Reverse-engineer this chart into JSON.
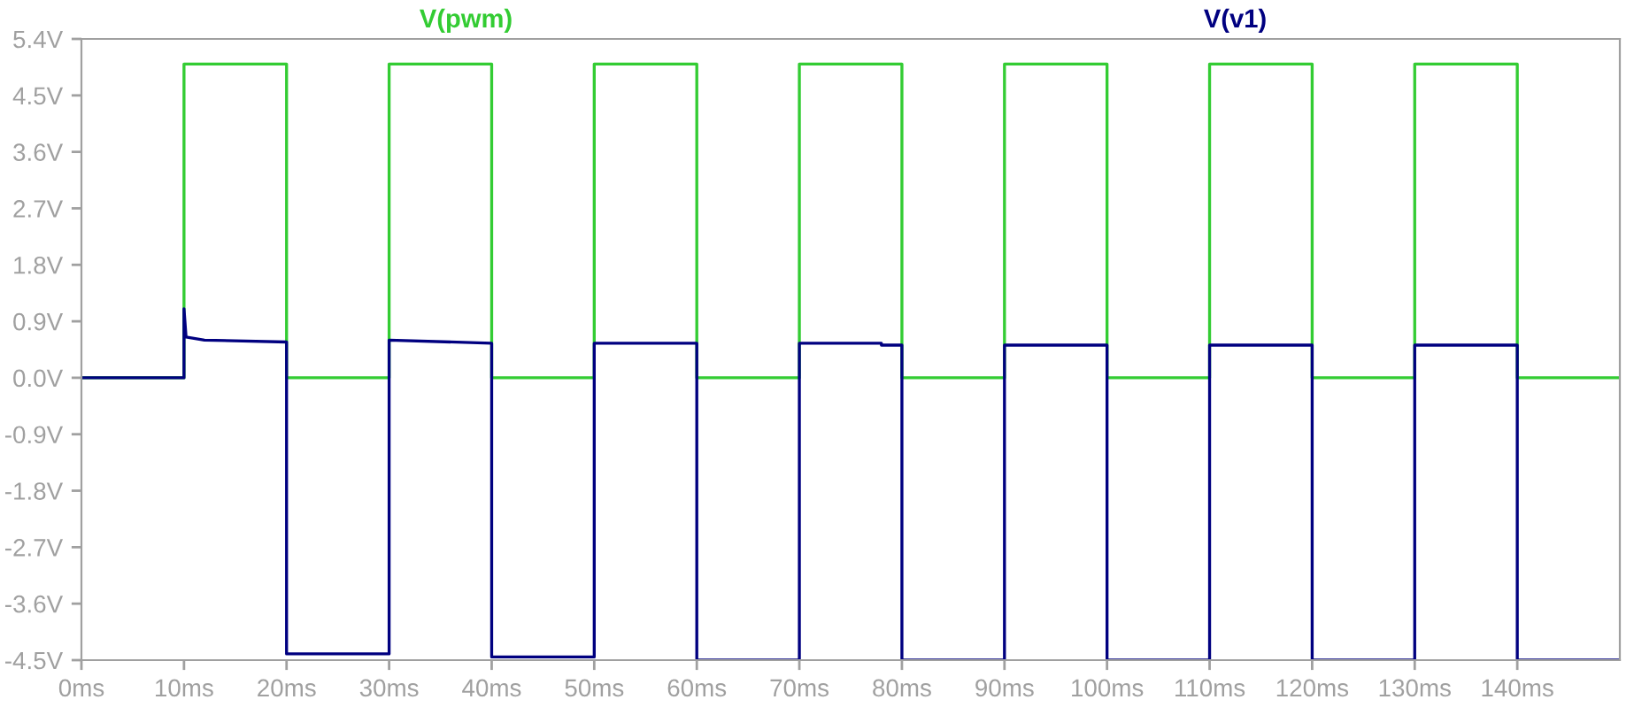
{
  "chart_data": {
    "type": "line",
    "xlim": [
      0,
      150
    ],
    "ylim": [
      -4.5,
      5.4
    ],
    "xticks": [
      {
        "value": 0,
        "label": "0ms"
      },
      {
        "value": 10,
        "label": "10ms"
      },
      {
        "value": 20,
        "label": "20ms"
      },
      {
        "value": 30,
        "label": "30ms"
      },
      {
        "value": 40,
        "label": "40ms"
      },
      {
        "value": 50,
        "label": "50ms"
      },
      {
        "value": 60,
        "label": "60ms"
      },
      {
        "value": 70,
        "label": "70ms"
      },
      {
        "value": 80,
        "label": "80ms"
      },
      {
        "value": 90,
        "label": "90ms"
      },
      {
        "value": 100,
        "label": "100ms"
      },
      {
        "value": 110,
        "label": "110ms"
      },
      {
        "value": 120,
        "label": "120ms"
      },
      {
        "value": 130,
        "label": "130ms"
      },
      {
        "value": 140,
        "label": "140ms"
      }
    ],
    "yticks": [
      {
        "value": -4.5,
        "label": "-4.5V"
      },
      {
        "value": -3.6,
        "label": "-3.6V"
      },
      {
        "value": -2.7,
        "label": "-2.7V"
      },
      {
        "value": -1.8,
        "label": "-1.8V"
      },
      {
        "value": -0.9,
        "label": "-0.9V"
      },
      {
        "value": 0,
        "label": "0.0V"
      },
      {
        "value": 0.9,
        "label": "0.9V"
      },
      {
        "value": 1.8,
        "label": "1.8V"
      },
      {
        "value": 2.7,
        "label": "2.7V"
      },
      {
        "value": 3.6,
        "label": "3.6V"
      },
      {
        "value": 4.5,
        "label": "4.5V"
      },
      {
        "value": 5.4,
        "label": "5.4V"
      }
    ],
    "grid": false,
    "legend": "top",
    "marker": "none",
    "line_style": "solid",
    "series": [
      {
        "name": "V(pwm)",
        "color": "#33cc33",
        "x": [
          0,
          10,
          10,
          20,
          20,
          30,
          30,
          40,
          40,
          50,
          50,
          60,
          60,
          70,
          70,
          80,
          80,
          90,
          90,
          100,
          100,
          110,
          110,
          120,
          120,
          130,
          130,
          140,
          140,
          150
        ],
        "values": [
          0,
          0,
          5,
          5,
          0,
          0,
          5,
          5,
          0,
          0,
          5,
          5,
          0,
          0,
          5,
          5,
          0,
          0,
          5,
          5,
          0,
          0,
          5,
          5,
          0,
          0,
          5,
          5,
          0,
          0
        ]
      },
      {
        "name": "V(v1)",
        "color": "#000080",
        "x": [
          0,
          10,
          10,
          10.2,
          12,
          20,
          20,
          30,
          30,
          40,
          40,
          50,
          50,
          60,
          60,
          70,
          70,
          78,
          78,
          80,
          80,
          90,
          90,
          100,
          100,
          110,
          110,
          120,
          120,
          130,
          130,
          140,
          140,
          150
        ],
        "values": [
          0,
          0,
          1.1,
          0.65,
          0.6,
          0.57,
          -4.4,
          -4.4,
          0.6,
          0.55,
          -4.45,
          -4.45,
          0.55,
          0.55,
          -4.5,
          -4.5,
          0.55,
          0.55,
          0.52,
          0.52,
          -4.5,
          -4.5,
          0.52,
          0.52,
          -4.5,
          -4.5,
          0.52,
          0.52,
          -4.5,
          -4.5,
          0.52,
          0.52,
          -4.5,
          -4.5
        ]
      }
    ]
  }
}
